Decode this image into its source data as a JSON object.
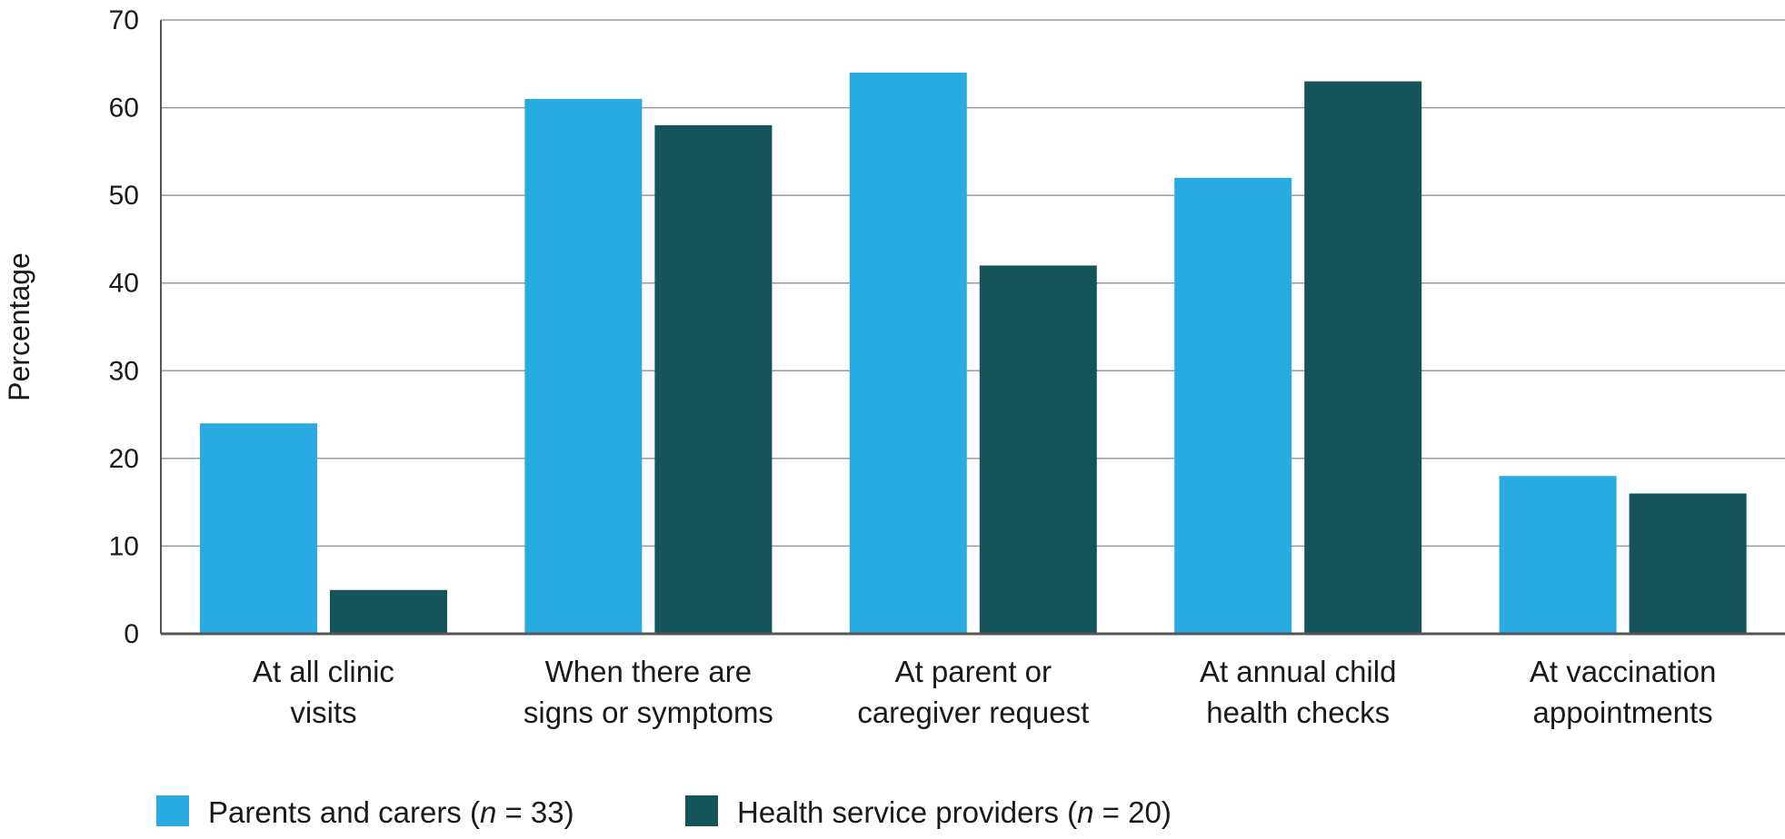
{
  "chart_data": {
    "type": "bar",
    "title": "",
    "xlabel": "",
    "ylabel": "Percentage",
    "ylim": [
      0,
      70
    ],
    "yticks": [
      0,
      10,
      20,
      30,
      40,
      50,
      60,
      70
    ],
    "grid": true,
    "legend_position": "bottom-left",
    "categories": [
      [
        "At all clinic",
        "visits"
      ],
      [
        "When there are",
        "signs or symptoms"
      ],
      [
        "At parent or",
        "caregiver request"
      ],
      [
        "At annual child",
        "health checks"
      ],
      [
        "At vaccination",
        "appointments"
      ]
    ],
    "series": [
      {
        "name": "Parents and carers",
        "n_label": "n",
        "n_value": "= 33",
        "color": "#29abe2",
        "values": [
          24,
          61,
          64,
          52,
          18
        ]
      },
      {
        "name": "Health service providers",
        "n_label": "n",
        "n_value": "= 20",
        "color": "#14545a",
        "values": [
          5,
          58,
          42,
          63,
          16
        ]
      }
    ]
  }
}
